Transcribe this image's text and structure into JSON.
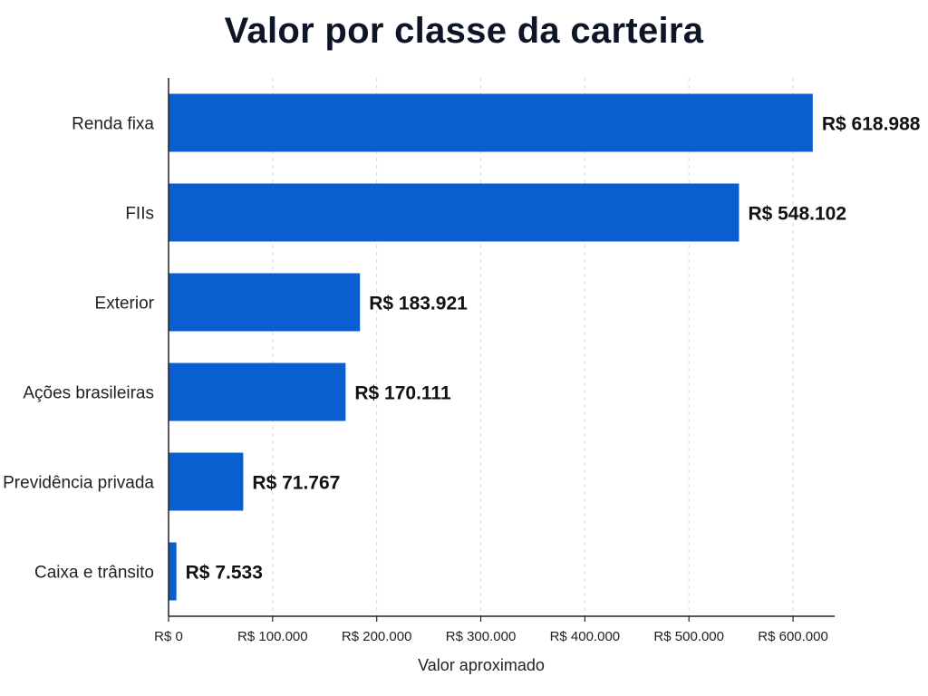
{
  "chart_data": {
    "type": "bar",
    "orientation": "horizontal",
    "title": "Valor por classe da carteira",
    "xlabel": "Valor aproximado",
    "ylabel": "",
    "categories": [
      "Renda fixa",
      "FIIs",
      "Exterior",
      "Ações brasileiras",
      "Previdência privada",
      "Caixa e trânsito"
    ],
    "values": [
      618988,
      548102,
      183921,
      170111,
      71767,
      7533
    ],
    "value_labels": [
      "R$ 618.988",
      "R$ 548.102",
      "R$ 183.921",
      "R$ 170.111",
      "R$ 71.767",
      "R$ 7.533"
    ],
    "xlim": [
      0,
      640000
    ],
    "x_ticks": [
      0,
      100000,
      200000,
      300000,
      400000,
      500000,
      600000
    ],
    "x_tick_labels": [
      "R$ 0",
      "R$ 100.000",
      "R$ 200.000",
      "R$ 300.000",
      "R$ 400.000",
      "R$ 500.000",
      "R$ 600.000"
    ],
    "grid": "vertical dashed",
    "legend": "none",
    "colors": {
      "bar": "#0a5fd0",
      "axis": "#222222",
      "grid": "#d9d9d9",
      "title": "#0d1526"
    }
  }
}
